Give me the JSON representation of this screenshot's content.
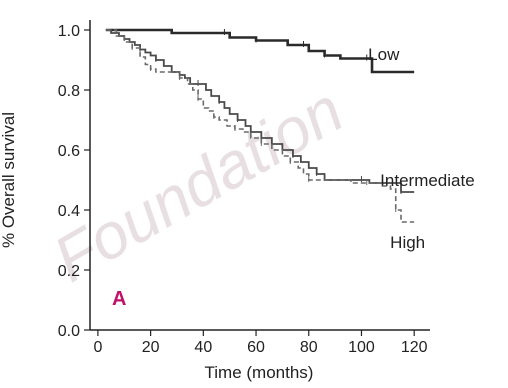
{
  "colors": {
    "axis": "#222222",
    "panel_label": "#c0116a",
    "low": "#2a2a2a",
    "intermediate": "#4a4a4a",
    "high": "#6a6a6a"
  },
  "chart_data": {
    "type": "line",
    "title": "",
    "xlabel": "Time (months)",
    "ylabel": "% Overall survival",
    "xlim": [
      -3,
      126
    ],
    "ylim": [
      0,
      1.0
    ],
    "x_ticks": [
      0,
      20,
      40,
      60,
      80,
      100,
      120
    ],
    "y_ticks": [
      0.0,
      0.2,
      0.4,
      0.6,
      0.8,
      1.0
    ],
    "x_tick_labels": [
      "0",
      "20",
      "40",
      "60",
      "80",
      "100",
      "120"
    ],
    "y_tick_labels": [
      "0.0",
      "0.2",
      "0.4",
      "0.6",
      "0.8",
      "1.0"
    ],
    "panel_label": "A",
    "grid": false,
    "series": [
      {
        "name": "Low",
        "step": true,
        "points": [
          [
            3,
            1.0
          ],
          [
            25,
            1.0
          ],
          [
            28,
            0.99
          ],
          [
            48,
            0.99
          ],
          [
            50,
            0.975
          ],
          [
            58,
            0.975
          ],
          [
            60,
            0.965
          ],
          [
            70,
            0.965
          ],
          [
            72,
            0.95
          ],
          [
            78,
            0.95
          ],
          [
            80,
            0.93
          ],
          [
            84,
            0.93
          ],
          [
            86,
            0.915
          ],
          [
            90,
            0.915
          ],
          [
            92,
            0.905
          ],
          [
            102,
            0.905
          ],
          [
            104,
            0.86
          ],
          [
            120,
            0.86
          ]
        ]
      },
      {
        "name": "Intermediate",
        "step": true,
        "points": [
          [
            3,
            1.0
          ],
          [
            5,
            0.99
          ],
          [
            8,
            0.98
          ],
          [
            10,
            0.97
          ],
          [
            12,
            0.96
          ],
          [
            14,
            0.95
          ],
          [
            16,
            0.935
          ],
          [
            18,
            0.925
          ],
          [
            20,
            0.915
          ],
          [
            22,
            0.9
          ],
          [
            25,
            0.88
          ],
          [
            28,
            0.86
          ],
          [
            31,
            0.85
          ],
          [
            33,
            0.84
          ],
          [
            35,
            0.82
          ],
          [
            38,
            0.82
          ],
          [
            41,
            0.8
          ],
          [
            43,
            0.78
          ],
          [
            46,
            0.76
          ],
          [
            48,
            0.74
          ],
          [
            50,
            0.72
          ],
          [
            53,
            0.7
          ],
          [
            56,
            0.68
          ],
          [
            58,
            0.66
          ],
          [
            62,
            0.64
          ],
          [
            66,
            0.62
          ],
          [
            70,
            0.6
          ],
          [
            74,
            0.58
          ],
          [
            77,
            0.56
          ],
          [
            80,
            0.54
          ],
          [
            83,
            0.52
          ],
          [
            86,
            0.5
          ],
          [
            96,
            0.5
          ],
          [
            100,
            0.5
          ],
          [
            103,
            0.49
          ],
          [
            113,
            0.49
          ],
          [
            115,
            0.46
          ],
          [
            120,
            0.46
          ]
        ]
      },
      {
        "name": "High",
        "step": true,
        "points": [
          [
            3,
            1.0
          ],
          [
            7,
            0.98
          ],
          [
            10,
            0.96
          ],
          [
            13,
            0.94
          ],
          [
            16,
            0.91
          ],
          [
            18,
            0.885
          ],
          [
            20,
            0.87
          ],
          [
            22,
            0.86
          ],
          [
            28,
            0.86
          ],
          [
            31,
            0.84
          ],
          [
            34,
            0.82
          ],
          [
            36,
            0.8
          ],
          [
            38,
            0.77
          ],
          [
            40,
            0.74
          ],
          [
            42,
            0.73
          ],
          [
            44,
            0.71
          ],
          [
            46,
            0.7
          ],
          [
            49,
            0.68
          ],
          [
            52,
            0.67
          ],
          [
            55,
            0.66
          ],
          [
            58,
            0.64
          ],
          [
            62,
            0.62
          ],
          [
            66,
            0.6
          ],
          [
            70,
            0.58
          ],
          [
            73,
            0.56
          ],
          [
            76,
            0.54
          ],
          [
            78,
            0.52
          ],
          [
            80,
            0.5
          ],
          [
            88,
            0.5
          ],
          [
            96,
            0.49
          ],
          [
            102,
            0.49
          ],
          [
            108,
            0.48
          ],
          [
            111,
            0.47
          ],
          [
            113,
            0.4
          ],
          [
            115,
            0.36
          ],
          [
            120,
            0.36
          ]
        ]
      }
    ]
  }
}
